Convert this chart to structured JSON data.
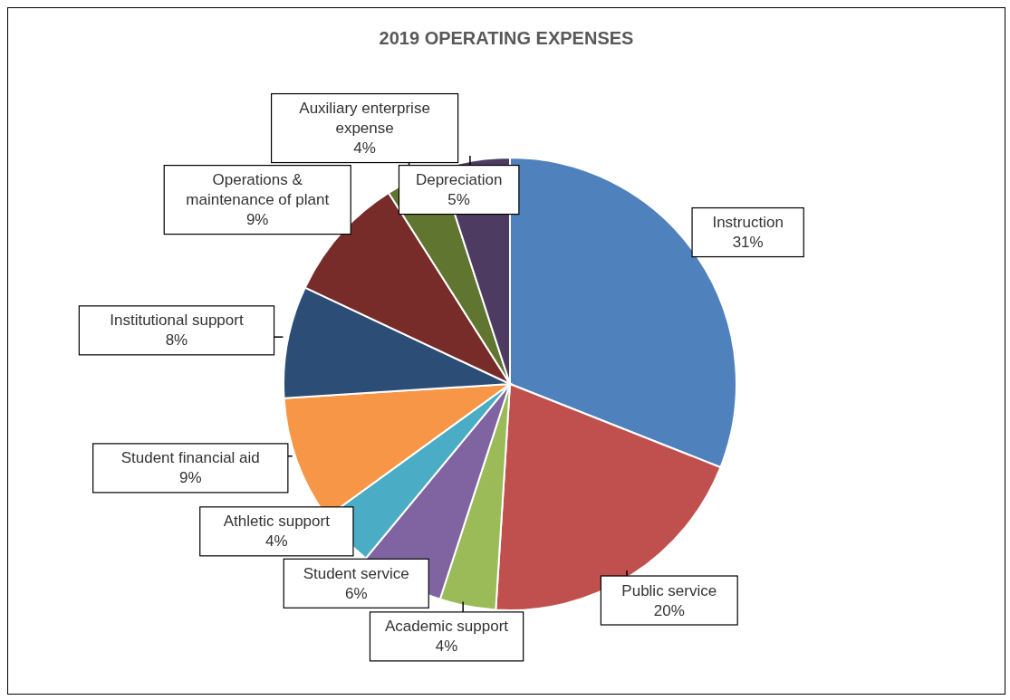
{
  "chart_data": {
    "type": "pie",
    "title": "2019 OPERATING EXPENSES",
    "categories": [
      "Instruction",
      "Public service",
      "Academic support",
      "Student service",
      "Athletic support",
      "Student financial aid",
      "Institutional support",
      "Operations & maintenance of plant",
      "Auxiliary enterprise expense",
      "Depreciation"
    ],
    "values": [
      31,
      20,
      4,
      6,
      4,
      9,
      8,
      9,
      4,
      5
    ],
    "value_labels": [
      "31%",
      "20%",
      "4%",
      "6%",
      "4%",
      "9%",
      "8%",
      "9%",
      "4%",
      "5%"
    ],
    "colors": [
      "#4f81bd",
      "#c0504d",
      "#9bbb59",
      "#8064a2",
      "#4bacc6",
      "#f79646",
      "#2c4d75",
      "#772c2a",
      "#5f7530",
      "#4d3b62"
    ],
    "legend": false
  }
}
